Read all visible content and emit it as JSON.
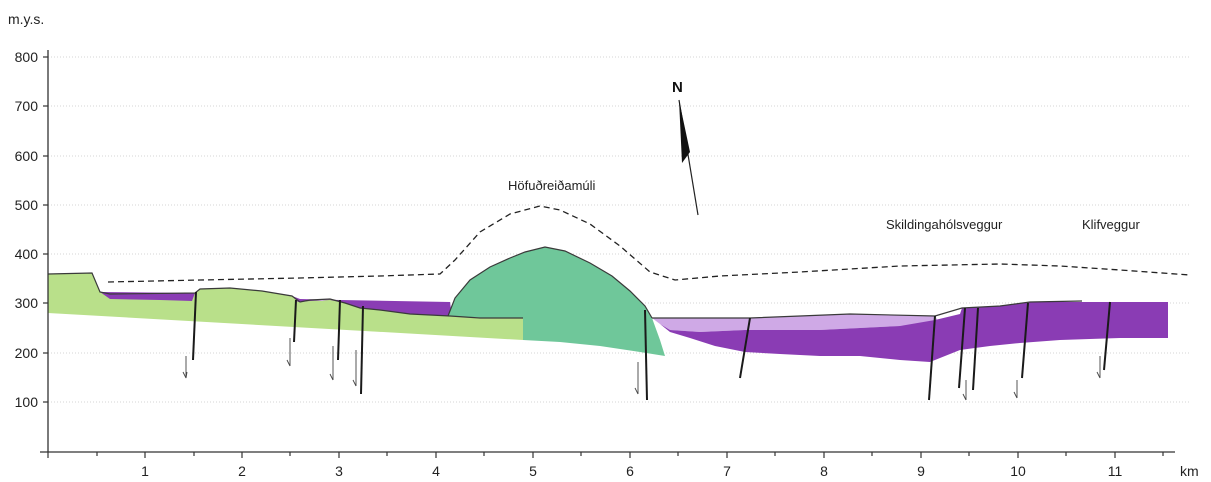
{
  "y_unit": "m.y.s.",
  "x_unit": "km",
  "y_ticks": [
    "100",
    "200",
    "300",
    "400",
    "500",
    "600",
    "700",
    "800"
  ],
  "x_ticks": [
    "1",
    "2",
    "3",
    "4",
    "5",
    "6",
    "7",
    "8",
    "9",
    "10",
    "11"
  ],
  "labels": {
    "hofudreidamuli": "Höfuðreiðamúli",
    "skildingaholsveggur": "Skildingahólsveggur",
    "klifveggur": "Klifveggur",
    "north": "N"
  },
  "colors": {
    "light_green": "#b9e08a",
    "teal_green": "#6fc79a",
    "purple": "#8a3cb4",
    "light_purple": "#cfa9e6"
  },
  "icons": [
    "north-arrow-icon"
  ]
}
